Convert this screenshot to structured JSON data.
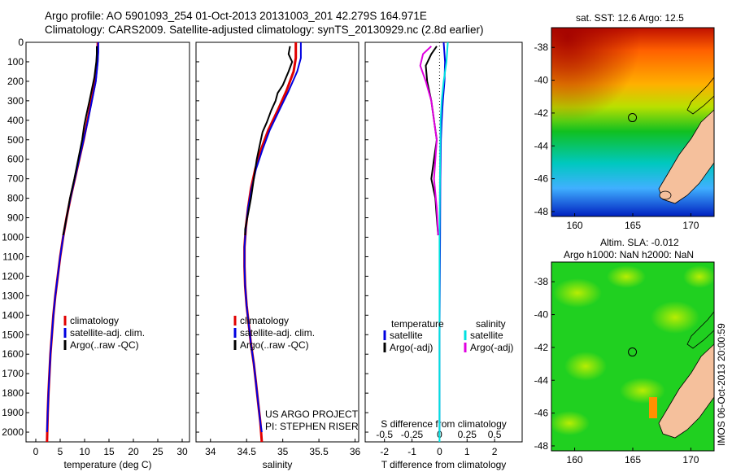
{
  "header": {
    "line1": "Argo profile: AO 5901093_254 01-Oct-2013 20131003_201 42.279S 164.971E",
    "line2": "Climatology: CARS2009. Satellite-adjusted climatology: synTS_20130929.nc (2.8d earlier)"
  },
  "colors": {
    "climatology": "#e00000",
    "satellite": "#0000e0",
    "argo": "#000000",
    "satellite_salinity": "#00e0e0",
    "argo_salinity_adj": "#e000e0"
  },
  "chart_data": [
    {
      "type": "line",
      "id": "temperature",
      "xlabel": "temperature (deg C)",
      "xticks": [
        0,
        5,
        10,
        15,
        20,
        25,
        30
      ],
      "xlim": [
        -2,
        31.5
      ],
      "yticks": [
        0,
        100,
        200,
        300,
        400,
        500,
        600,
        700,
        800,
        900,
        1000,
        1100,
        1200,
        1300,
        1400,
        1500,
        1600,
        1700,
        1800,
        1900,
        2000
      ],
      "ylim": [
        0,
        2050
      ],
      "y_reversed": true,
      "legend": [
        "climatology",
        "satellite-adj. clim.",
        "Argo(..raw -QC)"
      ],
      "series": [
        {
          "name": "climatology",
          "color_key": "climatology",
          "points": [
            [
              12.7,
              0
            ],
            [
              12.7,
              50
            ],
            [
              12.6,
              100
            ],
            [
              12.2,
              200
            ],
            [
              11.4,
              300
            ],
            [
              10.6,
              400
            ],
            [
              9.8,
              500
            ],
            [
              8.9,
              600
            ],
            [
              8.0,
              700
            ],
            [
              7.1,
              800
            ],
            [
              6.3,
              900
            ],
            [
              5.6,
              1000
            ],
            [
              5.0,
              1100
            ],
            [
              4.5,
              1200
            ],
            [
              4.0,
              1300
            ],
            [
              3.6,
              1400
            ],
            [
              3.3,
              1500
            ],
            [
              3.0,
              1600
            ],
            [
              2.8,
              1700
            ],
            [
              2.6,
              1800
            ],
            [
              2.45,
              1900
            ],
            [
              2.3,
              2050
            ]
          ]
        },
        {
          "name": "satellite-adj. clim.",
          "color_key": "satellite",
          "points": [
            [
              12.8,
              0
            ],
            [
              12.8,
              50
            ],
            [
              12.7,
              100
            ],
            [
              12.3,
              200
            ],
            [
              11.5,
              300
            ],
            [
              10.7,
              400
            ],
            [
              9.8,
              500
            ],
            [
              8.9,
              600
            ],
            [
              8.0,
              700
            ],
            [
              7.1,
              800
            ],
            [
              6.3,
              900
            ],
            [
              5.6,
              1000
            ],
            [
              5.0,
              1100
            ],
            [
              4.5,
              1200
            ],
            [
              4.0,
              1300
            ],
            [
              3.6,
              1400
            ],
            [
              3.3,
              1500
            ],
            [
              3.0,
              1600
            ],
            [
              2.8,
              1700
            ],
            [
              2.6,
              1800
            ],
            [
              2.45,
              1900
            ],
            [
              2.3,
              2000
            ]
          ]
        },
        {
          "name": "Argo(..raw -QC)",
          "color_key": "argo",
          "points": [
            [
              12.5,
              20
            ],
            [
              12.5,
              60
            ],
            [
              12.4,
              100
            ],
            [
              12.0,
              180
            ],
            [
              11.5,
              240
            ],
            [
              11.0,
              300
            ],
            [
              10.3,
              380
            ],
            [
              9.9,
              430
            ],
            [
              9.5,
              500
            ],
            [
              8.7,
              600
            ],
            [
              7.9,
              700
            ],
            [
              7.0,
              800
            ],
            [
              6.3,
              900
            ],
            [
              5.6,
              990
            ]
          ]
        }
      ],
      "annotation": []
    },
    {
      "type": "line",
      "id": "salinity",
      "xlabel": "salinity",
      "xticks": [
        34,
        34.5,
        35,
        35.5,
        36
      ],
      "xlim": [
        33.8,
        36.05
      ],
      "ylim": [
        0,
        2050
      ],
      "y_reversed": true,
      "legend": [
        "climatology",
        "satellite-adj. clim.",
        "Argo(..raw -QC)"
      ],
      "series": [
        {
          "name": "climatology",
          "color_key": "climatology",
          "points": [
            [
              35.18,
              0
            ],
            [
              35.18,
              80
            ],
            [
              35.15,
              150
            ],
            [
              35.05,
              250
            ],
            [
              34.93,
              350
            ],
            [
              34.8,
              450
            ],
            [
              34.7,
              550
            ],
            [
              34.62,
              650
            ],
            [
              34.56,
              750
            ],
            [
              34.52,
              850
            ],
            [
              34.49,
              950
            ],
            [
              34.47,
              1050
            ],
            [
              34.47,
              1150
            ],
            [
              34.48,
              1250
            ],
            [
              34.5,
              1350
            ],
            [
              34.53,
              1450
            ],
            [
              34.56,
              1550
            ],
            [
              34.6,
              1650
            ],
            [
              34.63,
              1750
            ],
            [
              34.66,
              1850
            ],
            [
              34.69,
              1950
            ],
            [
              34.71,
              2050
            ]
          ]
        },
        {
          "name": "satellite-adj. clim.",
          "color_key": "satellite",
          "points": [
            [
              35.25,
              0
            ],
            [
              35.25,
              80
            ],
            [
              35.2,
              150
            ],
            [
              35.08,
              250
            ],
            [
              34.95,
              350
            ],
            [
              34.82,
              450
            ],
            [
              34.72,
              550
            ],
            [
              34.63,
              650
            ],
            [
              34.57,
              750
            ],
            [
              34.52,
              850
            ],
            [
              34.49,
              950
            ],
            [
              34.47,
              1050
            ],
            [
              34.47,
              1150
            ],
            [
              34.48,
              1250
            ],
            [
              34.5,
              1350
            ],
            [
              34.53,
              1450
            ],
            [
              34.56,
              1550
            ],
            [
              34.6,
              1650
            ],
            [
              34.63,
              1750
            ],
            [
              34.66,
              1850
            ],
            [
              34.69,
              1950
            ],
            [
              34.71,
              2000
            ]
          ]
        },
        {
          "name": "Argo(..raw -QC)",
          "color_key": "argo",
          "points": [
            [
              35.1,
              20
            ],
            [
              35.08,
              60
            ],
            [
              35.13,
              100
            ],
            [
              35.08,
              150
            ],
            [
              35.0,
              220
            ],
            [
              34.93,
              260
            ],
            [
              34.9,
              300
            ],
            [
              34.84,
              350
            ],
            [
              34.78,
              410
            ],
            [
              34.72,
              460
            ],
            [
              34.68,
              530
            ],
            [
              34.64,
              600
            ],
            [
              34.6,
              700
            ],
            [
              34.56,
              800
            ],
            [
              34.52,
              880
            ],
            [
              34.48,
              960
            ],
            [
              34.48,
              990
            ]
          ]
        }
      ],
      "annotation": [
        "US ARGO PROJECT",
        "PI: STEPHEN RISER"
      ]
    },
    {
      "type": "line",
      "id": "difference",
      "xlabel": "T difference from climatology",
      "xlabel_top": "S difference from climatology",
      "xticks": [
        -2,
        -1,
        0,
        1,
        2
      ],
      "xticks_top": [
        "-0.5",
        "-0.25",
        "0",
        "0.25",
        "0.5"
      ],
      "xlim": [
        -2.7,
        3.0
      ],
      "ylim": [
        0,
        2050
      ],
      "y_reversed": true,
      "legend_left_title": "temperature",
      "legend_right_title": "salinity",
      "legend": [
        "satellite",
        "Argo(-adj)",
        "satellite",
        "Argo(-adj)"
      ],
      "series": [
        {
          "name": "temperature satellite",
          "color_key": "satellite",
          "points": [
            [
              0.15,
              0
            ],
            [
              0.2,
              100
            ],
            [
              0.18,
              200
            ],
            [
              0.12,
              300
            ],
            [
              0.08,
              400
            ],
            [
              0.05,
              500
            ],
            [
              0.03,
              700
            ],
            [
              0.02,
              1000
            ],
            [
              0.0,
              1500
            ],
            [
              0.0,
              2000
            ]
          ]
        },
        {
          "name": "salinity satellite",
          "color_key": "satellite_salinity",
          "points": [
            [
              0.3,
              0
            ],
            [
              0.25,
              100
            ],
            [
              0.15,
              200
            ],
            [
              0.08,
              300
            ],
            [
              0.04,
              400
            ],
            [
              0.02,
              600
            ],
            [
              0.0,
              1000
            ],
            [
              0.0,
              2050
            ]
          ]
        },
        {
          "name": "temperature Argo(-adj)",
          "color_key": "argo",
          "points": [
            [
              -0.1,
              20
            ],
            [
              -0.3,
              60
            ],
            [
              -0.5,
              120
            ],
            [
              -0.45,
              200
            ],
            [
              -0.3,
              300
            ],
            [
              -0.2,
              400
            ],
            [
              -0.1,
              500
            ],
            [
              -0.2,
              600
            ],
            [
              -0.3,
              700
            ],
            [
              -0.15,
              800
            ],
            [
              -0.1,
              900
            ],
            [
              -0.05,
              990
            ]
          ]
        },
        {
          "name": "salinity Argo(-adj)",
          "color_key": "argo_salinity_adj",
          "points": [
            [
              -0.3,
              20
            ],
            [
              -0.6,
              60
            ],
            [
              -0.7,
              120
            ],
            [
              -0.5,
              200
            ],
            [
              -0.3,
              300
            ],
            [
              -0.2,
              400
            ],
            [
              -0.1,
              500
            ],
            [
              -0.15,
              600
            ],
            [
              -0.2,
              700
            ],
            [
              -0.1,
              850
            ],
            [
              -0.05,
              990
            ]
          ]
        }
      ],
      "annotation": []
    }
  ],
  "maps": {
    "sst": {
      "title": "sat. SST: 12.6 Argo: 12.5",
      "yticks": [
        "-38",
        "-40",
        "-42",
        "-44",
        "-46",
        "-48"
      ],
      "xticks": [
        "160",
        "165",
        "170"
      ],
      "argo_lon": 164.97,
      "argo_lat": -42.28
    },
    "sla": {
      "title1": "Altim. SLA: -0.012",
      "title2": "Argo h1000: NaN h2000: NaN",
      "yticks": [
        "-38",
        "-40",
        "-42",
        "-44",
        "-46",
        "-48"
      ],
      "xticks": [
        "160",
        "165",
        "170"
      ],
      "argo_lon": 164.97,
      "argo_lat": -42.28
    },
    "credit": "IMOS 06-Oct-2013 20:00:59"
  }
}
